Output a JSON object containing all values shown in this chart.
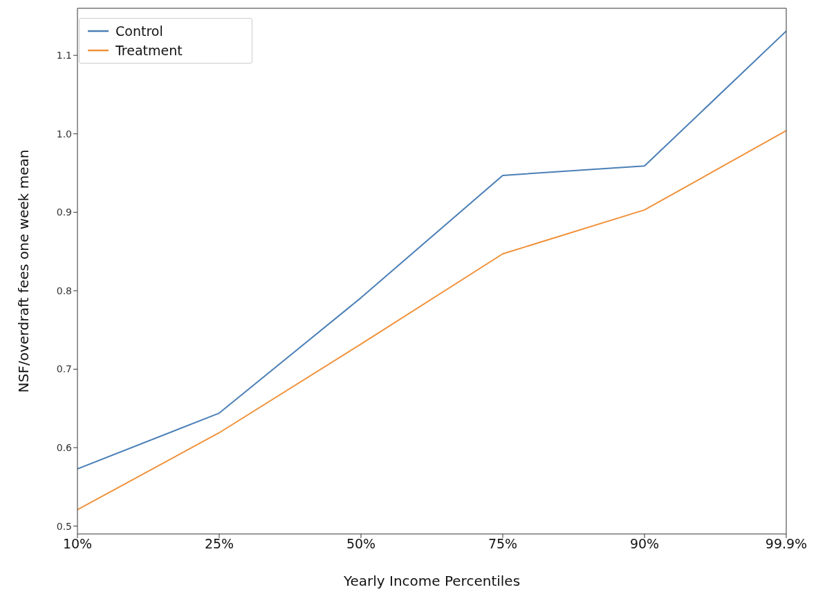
{
  "chart_data": {
    "type": "line",
    "xlabel": "Yearly Income Percentiles",
    "ylabel": "NSF/overdraft fees one week mean",
    "categories": [
      "10%",
      "25%",
      "50%",
      "75%",
      "90%",
      "99.9%"
    ],
    "series": [
      {
        "name": "Control",
        "color": "#4a7fb6",
        "values": [
          0.573,
          0.644,
          0.791,
          0.947,
          0.959,
          1.131
        ]
      },
      {
        "name": "Treatment",
        "color": "#f0913a",
        "values": [
          0.521,
          0.619,
          0.732,
          0.847,
          0.903,
          1.004
        ]
      }
    ],
    "ylim": [
      0.49,
      1.16
    ],
    "yticks": [
      0.5,
      0.6,
      0.7,
      0.8,
      0.9,
      {
        "value": 1,
        "label": "1.0"
      },
      1.1
    ],
    "grid": false,
    "legend": "top left",
    "marker": "none",
    "line_style": "solid"
  }
}
